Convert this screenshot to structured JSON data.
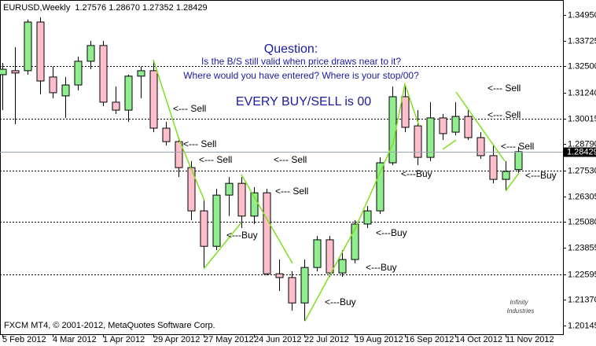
{
  "chart_data": {
    "type": "candlestick",
    "header": {
      "symbol": "EURUSD,Weekly",
      "ohlc": "1.27576 1.28670 1.27352 1.28429"
    },
    "title": "Question:",
    "subtitle": [
      "Is the B/S still valid when price draws near to it?",
      "Where would you have entered? Where is your stop/00?"
    ],
    "headline": "EVERY BUY/SELL is 00",
    "annotations": [
      "<--- Sell",
      "<--- Sell",
      "<--- Sell",
      "<--- Sell",
      "<--- Sell",
      "<--- Sell",
      "<--- Sell",
      "<--- Sell",
      "<---Buy",
      "<---Buy",
      "<---Buy",
      "<---Buy",
      "<---Buy",
      "<---Buy"
    ],
    "footer": "FXCM MT4, © 2001-2012, MetaQuotes Software Corp.",
    "logo": [
      "Infinity",
      "Industries"
    ],
    "categories": [
      "5 Feb 2012",
      null,
      null,
      null,
      "4 Mar 2012",
      null,
      null,
      null,
      "1 Apr 2012",
      null,
      null,
      null,
      "29 Apr 2012",
      null,
      null,
      null,
      "27 May 2012",
      null,
      null,
      null,
      "24 Jun 2012",
      null,
      null,
      null,
      "22 Jul 2012",
      null,
      null,
      null,
      "19 Aug 2012",
      null,
      null,
      null,
      "16 Sep 2012",
      null,
      null,
      null,
      "14 Oct 2012",
      null,
      null,
      null,
      "11 Nov 2012",
      null
    ],
    "open": [
      1.321,
      1.3229,
      1.3229,
      1.3461,
      1.3199,
      1.3109,
      1.3161,
      1.3274,
      1.3349,
      1.3079,
      1.3041,
      1.3203,
      1.3229,
      1.2955,
      1.2891,
      1.2767,
      1.2561,
      1.2392,
      1.2636,
      1.2692,
      1.2536,
      1.2647,
      1.2261,
      1.2243,
      1.2122,
      1.2291,
      1.2423,
      1.2265,
      1.2329,
      1.2498,
      1.2561,
      1.279,
      1.3105,
      1.2966,
      1.2816,
      1.3004,
      1.2936,
      1.3011,
      1.291,
      1.2824,
      1.2711,
      1.27576
    ],
    "high": [
      1.3266,
      1.3341,
      1.3473,
      1.3484,
      1.3248,
      1.3199,
      1.3296,
      1.3371,
      1.3371,
      1.3154,
      1.321,
      1.3248,
      1.3274,
      1.2985,
      1.291,
      1.2798,
      1.261,
      1.2666,
      1.2722,
      1.2722,
      1.2674,
      1.2666,
      1.2329,
      1.2273,
      1.2329,
      1.2441,
      1.2441,
      1.2374,
      1.2517,
      1.2584,
      1.2816,
      1.3154,
      1.3161,
      1.3041,
      1.3079,
      1.3023,
      1.3079,
      1.3041,
      1.2936,
      1.2873,
      1.2798,
      1.2867
    ],
    "low": [
      1.3041,
      1.2974,
      1.321,
      1.3116,
      1.3098,
      1.3004,
      1.3135,
      1.3236,
      1.306,
      1.3023,
      1.2985,
      1.3098,
      1.2936,
      1.2873,
      1.2722,
      1.2517,
      1.2291,
      1.2374,
      1.2536,
      1.2479,
      1.2498,
      1.2254,
      1.2179,
      1.2085,
      1.2036,
      1.2273,
      1.2246,
      1.2246,
      1.2311,
      1.2479,
      1.2546,
      1.2779,
      1.2936,
      1.2779,
      1.2798,
      1.2899,
      1.2921,
      1.2899,
      1.2809,
      1.2692,
      1.2655,
      1.27352
    ],
    "close": [
      1.3236,
      1.3218,
      1.3461,
      1.318,
      1.3124,
      1.3161,
      1.3274,
      1.3349,
      1.3079,
      1.3041,
      1.3203,
      1.3229,
      1.2955,
      1.2891,
      1.2767,
      1.2561,
      1.2392,
      1.2636,
      1.2692,
      1.2536,
      1.2647,
      1.2261,
      1.2243,
      1.2122,
      1.2291,
      1.2423,
      1.2265,
      1.2329,
      1.2498,
      1.2561,
      1.279,
      1.3105,
      1.2959,
      1.2816,
      1.3004,
      1.2929,
      1.3011,
      1.291,
      1.2824,
      1.2711,
      1.2749,
      1.28429
    ],
    "up_color": "#90ee90",
    "down_color": "#ffc0cb",
    "levels": [
      1.325,
      1.30015,
      {
        "value": 1.2753,
        "label": "1.27530"
      },
      {
        "value": 1.2508,
        "label": "1.25080"
      },
      1.22595
    ],
    "ylim": [
      1.1973,
      1.3566
    ],
    "yticks": [
      {
        "value": 1.3495,
        "label": "1.34950"
      },
      1.33725,
      {
        "value": 1.325,
        "label": "1.32500"
      },
      {
        "value": 1.3124,
        "label": "1.31240"
      },
      1.30015,
      {
        "value": 1.2879,
        "label": "1.28790"
      },
      {
        "value": 1.2753,
        "label": "1.27530"
      },
      1.26305,
      {
        "value": 1.2508,
        "label": "1.25080"
      },
      1.23855,
      1.22595,
      {
        "value": 1.2137,
        "label": "1.21370"
      },
      1.20145
    ]
  }
}
